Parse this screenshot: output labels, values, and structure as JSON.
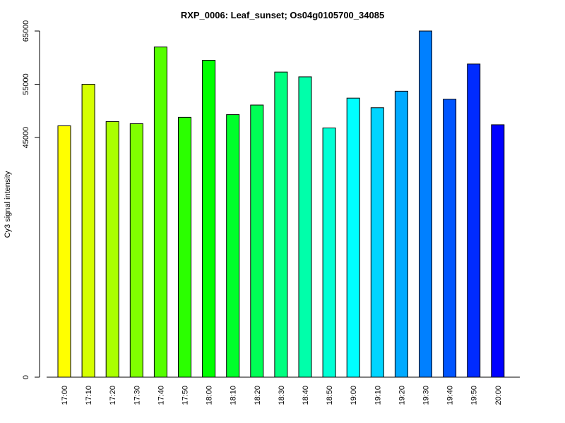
{
  "chart_data": {
    "type": "bar",
    "title": "RXP_0006: Leaf_sunset; Os04g0105700_34085",
    "xlabel": "",
    "ylabel": "Cy3 signal intensity",
    "ylim": [
      0,
      65000
    ],
    "yticks": [
      0,
      45000,
      55000,
      65000
    ],
    "ytick_labels": [
      "0",
      "45000",
      "55000",
      "65000"
    ],
    "grid": false,
    "legend": "none",
    "categories": [
      "17:00",
      "17:10",
      "17:20",
      "17:30",
      "17:40",
      "17:50",
      "18:00",
      "18:10",
      "18:20",
      "18:30",
      "18:40",
      "18:50",
      "19:00",
      "19:10",
      "19:20",
      "19:30",
      "19:40",
      "19:50",
      "20:00"
    ],
    "values": [
      47200,
      55000,
      48000,
      47600,
      62000,
      48800,
      59500,
      49300,
      51100,
      57300,
      56400,
      46800,
      52400,
      50600,
      53700,
      65000,
      52200,
      58800,
      47400
    ],
    "colors": [
      "#FFFF00",
      "#D5FF00",
      "#AAFF00",
      "#80FF00",
      "#55FF00",
      "#2BFF00",
      "#00FF00",
      "#00FF2B",
      "#00FF55",
      "#00FF80",
      "#00FFAA",
      "#00FFD5",
      "#00FFFF",
      "#00D5FF",
      "#00AAFF",
      "#0080FF",
      "#0055FF",
      "#002BFF",
      "#0000FF"
    ]
  }
}
